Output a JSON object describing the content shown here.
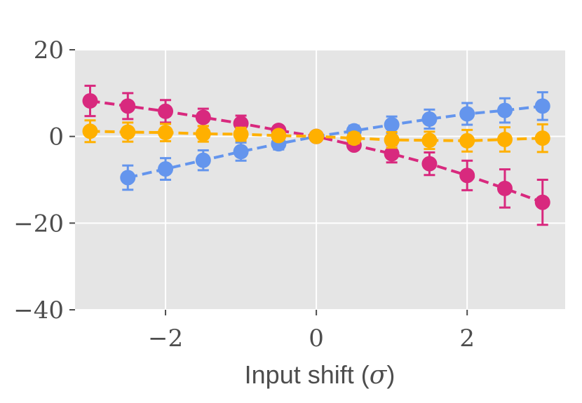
{
  "chart_data": {
    "type": "line",
    "xlabel": "Input shift (σ)",
    "xlabel_parts": {
      "before": "Input shift (",
      "symbol": "σ",
      "after": ")"
    },
    "ylabel": "",
    "xlim": [
      -3.2,
      3.3
    ],
    "ylim": [
      -40,
      20
    ],
    "xticks": [
      -2,
      0,
      2
    ],
    "xtick_labels": [
      "−2",
      "0",
      "2"
    ],
    "yticks": [
      20,
      0,
      -20,
      -40
    ],
    "ytick_labels": [
      "20",
      "0",
      "−20",
      "−40"
    ],
    "grid": true,
    "background": "#e5e5e5",
    "line_style": "dashed",
    "error_bars": true,
    "series": [
      {
        "color": "#6495ed",
        "x": [
          -2.5,
          -2,
          -1.5,
          -1,
          -0.5,
          0,
          0.5,
          1,
          1.5,
          2,
          2.5,
          3
        ],
        "y": [
          -9.5,
          -7.5,
          -5.5,
          -3.5,
          -1.7,
          0,
          1.3,
          2.7,
          4.0,
          5.2,
          6.0,
          7.0
        ],
        "err": [
          2.8,
          2.5,
          2.3,
          2.1,
          1.3,
          0.4,
          1.2,
          1.9,
          2.2,
          2.5,
          2.8,
          3.2
        ]
      },
      {
        "color": "#d8297e",
        "x": [
          -3,
          -2.5,
          -2,
          -1.5,
          -1,
          -0.5,
          0,
          0.5,
          1,
          1.5,
          2,
          2.5,
          3
        ],
        "y": [
          8.2,
          7.0,
          5.8,
          4.4,
          3.0,
          1.4,
          0,
          -2.0,
          -4.0,
          -6.3,
          -9.0,
          -12.0,
          -15.2
        ],
        "err": [
          3.5,
          3.0,
          2.6,
          2.0,
          1.8,
          1.0,
          0.4,
          1.0,
          2.0,
          2.6,
          3.4,
          4.4,
          5.2
        ]
      },
      {
        "color": "#ffb000",
        "x": [
          -3,
          -2.5,
          -2,
          -1.5,
          -1,
          -0.5,
          0,
          0.5,
          1,
          1.5,
          2,
          2.5,
          3
        ],
        "y": [
          1.2,
          1.0,
          0.9,
          0.6,
          0.5,
          0.2,
          0,
          -0.4,
          -0.8,
          -0.9,
          -1.0,
          -0.7,
          -0.4
        ],
        "err": [
          2.5,
          2.2,
          2.0,
          1.8,
          1.5,
          1.0,
          0.4,
          1.2,
          1.8,
          2.0,
          2.5,
          2.8,
          3.2
        ]
      }
    ]
  }
}
